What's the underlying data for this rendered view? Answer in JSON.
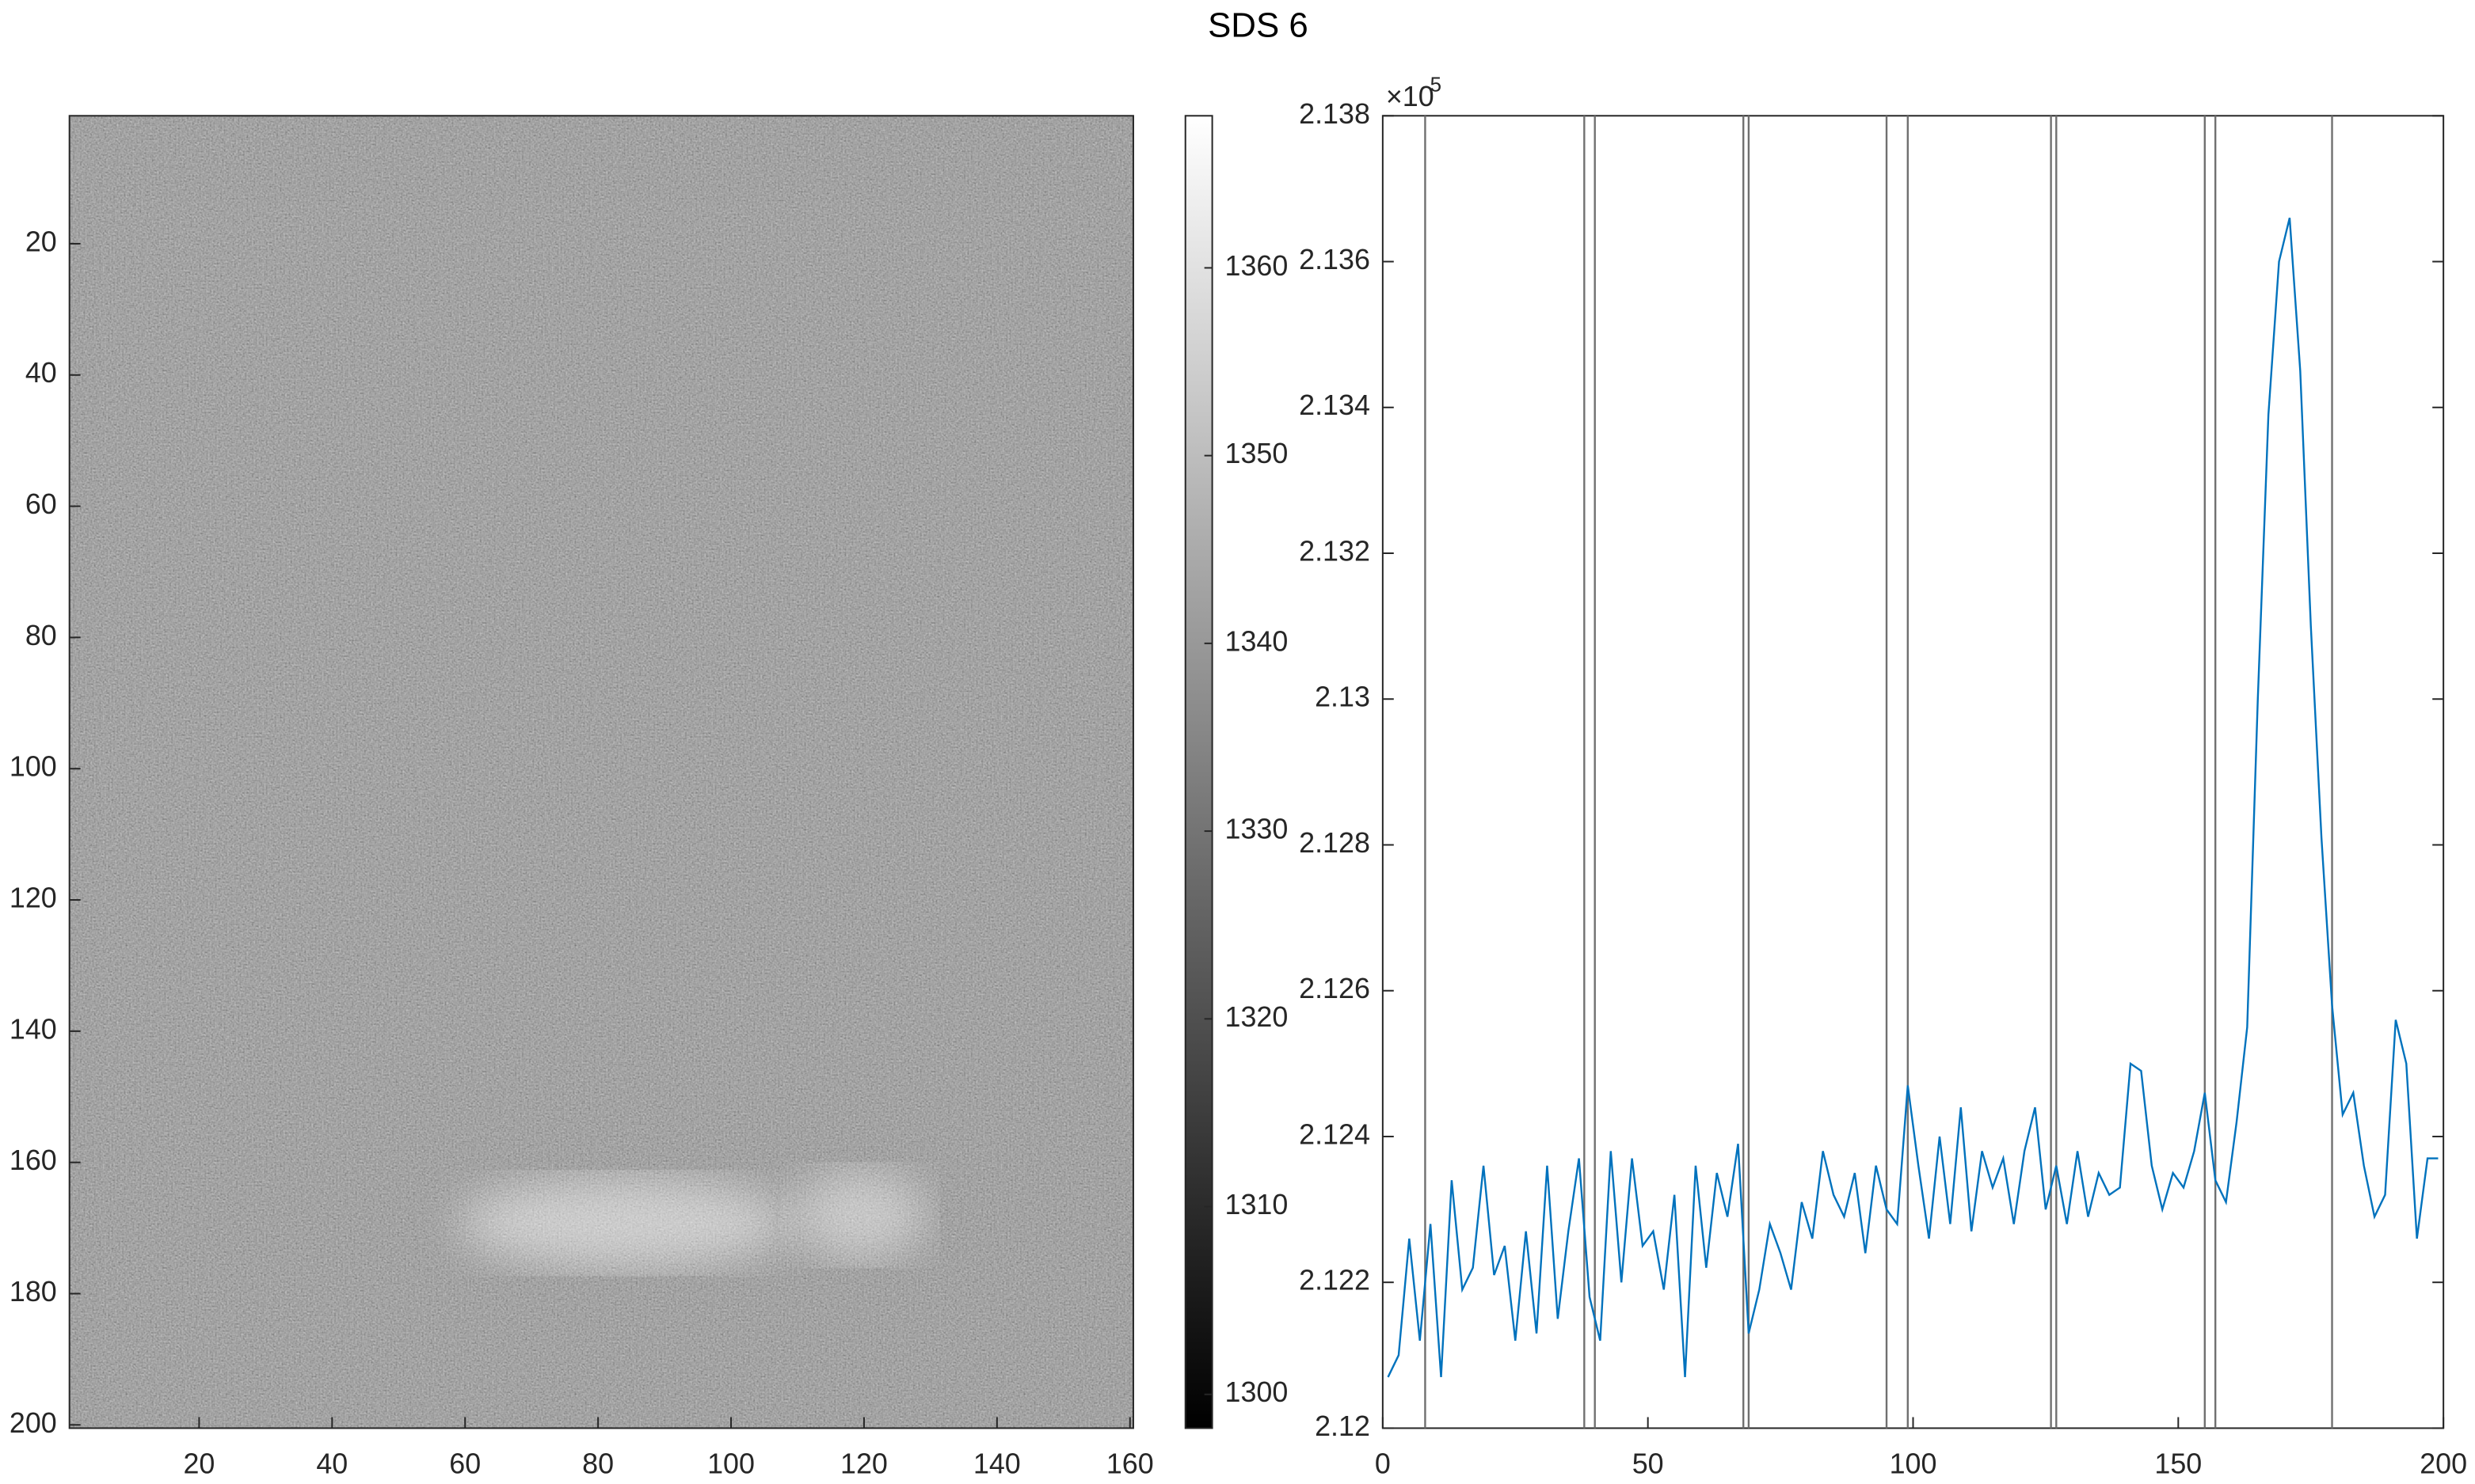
{
  "chart_data": [
    {
      "type": "heatmap",
      "title": "SDS 6",
      "xlim": [
        0.5,
        160.5
      ],
      "xticks": [
        20,
        40,
        60,
        80,
        100,
        120,
        140,
        160
      ],
      "ylim": [
        0.5,
        200.5
      ],
      "yticks": [
        20,
        40,
        60,
        80,
        100,
        120,
        140,
        160,
        180,
        200
      ],
      "y_reversed": true,
      "colormap": "gray",
      "colorbar": {
        "clim": [
          1298.2,
          1368.1
        ],
        "ticks": [
          1300,
          1310,
          1320,
          1330,
          1340,
          1350,
          1360
        ]
      }
    },
    {
      "type": "line",
      "xlim": [
        0,
        200
      ],
      "xticks": [
        0,
        50,
        100,
        150,
        200
      ],
      "ylim": [
        2.12,
        2.138
      ],
      "yticks": [
        2.12,
        2.122,
        2.124,
        2.126,
        2.128,
        2.13,
        2.132,
        2.134,
        2.136,
        2.138
      ],
      "y_exponent_base": "×10",
      "y_exponent": 5,
      "vlines": [
        8,
        38,
        40,
        68,
        69,
        95,
        99,
        126,
        127,
        155,
        157,
        179
      ],
      "vline_color": "#707070",
      "x": [
        1,
        3,
        5,
        7,
        9,
        11,
        13,
        15,
        17,
        19,
        21,
        23,
        25,
        27,
        29,
        31,
        33,
        35,
        37,
        39,
        41,
        43,
        45,
        47,
        49,
        51,
        53,
        55,
        57,
        59,
        61,
        63,
        65,
        67,
        69,
        71,
        73,
        75,
        77,
        79,
        81,
        83,
        85,
        87,
        89,
        91,
        93,
        95,
        97,
        99,
        101,
        103,
        105,
        107,
        109,
        111,
        113,
        115,
        117,
        119,
        121,
        123,
        125,
        127,
        129,
        131,
        133,
        135,
        137,
        139,
        141,
        143,
        145,
        147,
        149,
        151,
        153,
        155,
        157,
        159,
        161,
        163,
        165,
        167,
        169,
        171,
        173,
        175,
        177,
        179,
        181,
        183,
        185,
        187,
        189,
        191,
        193,
        195,
        197,
        199
      ],
      "series": [
        {
          "color": "#0072bd",
          "values": [
            2.1207,
            2.121,
            2.1226,
            2.1212,
            2.1228,
            2.1207,
            2.1234,
            2.1219,
            2.1222,
            2.1236,
            2.1221,
            2.1225,
            2.1212,
            2.1227,
            2.1213,
            2.1236,
            2.1215,
            2.1227,
            2.1237,
            2.1218,
            2.1212,
            2.1238,
            2.122,
            2.1237,
            2.1225,
            2.1227,
            2.1219,
            2.1232,
            2.1207,
            2.1236,
            2.1222,
            2.1235,
            2.1229,
            2.1239,
            2.1213,
            2.1219,
            2.1228,
            2.1224,
            2.1219,
            2.1231,
            2.1226,
            2.1238,
            2.1232,
            2.1229,
            2.1235,
            2.1224,
            2.1236,
            2.123,
            2.1228,
            2.1247,
            2.1236,
            2.1226,
            2.124,
            2.1228,
            2.1244,
            2.1227,
            2.1238,
            2.1233,
            2.1237,
            2.1228,
            2.1238,
            2.1244,
            2.123,
            2.1236,
            2.1228,
            2.1238,
            2.1229,
            2.1235,
            2.1232,
            2.1233,
            2.125,
            2.1249,
            2.1236,
            2.123,
            2.1235,
            2.1233,
            2.1238,
            2.1246,
            2.1234,
            2.1231,
            2.1242,
            2.1255,
            2.13,
            2.1339,
            2.136,
            2.1366,
            2.1345,
            2.131,
            2.1281,
            2.1258,
            2.1243,
            2.1246,
            2.1236,
            2.1229,
            2.1232,
            2.1256,
            2.125,
            2.1226,
            2.1237,
            2.1237
          ]
        }
      ]
    }
  ]
}
